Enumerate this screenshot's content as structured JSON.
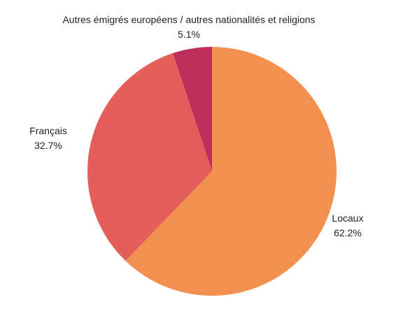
{
  "chart_data": {
    "type": "pie",
    "title": "",
    "slices": [
      {
        "label": "Locaux",
        "value": 62.2,
        "value_label": "62.2%",
        "color": "#F2914F"
      },
      {
        "label": "Français",
        "value": 32.7,
        "value_label": "32.7%",
        "color": "#E45E5A"
      },
      {
        "label": "Autres émigrés européens / autres nationalités et religions",
        "value": 5.1,
        "value_label": "5.1%",
        "color": "#BE2F5E"
      }
    ],
    "start": "12 o'clock",
    "direction": "clockwise",
    "legend": "none"
  }
}
